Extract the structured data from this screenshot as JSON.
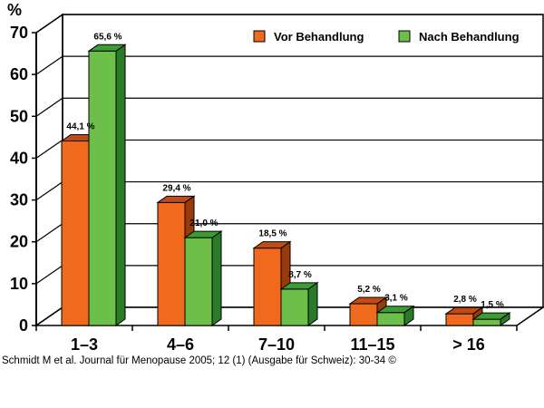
{
  "chart_data": {
    "type": "bar",
    "ylabel": "%",
    "ylim": [
      0,
      70
    ],
    "yticks": [
      0,
      10,
      20,
      30,
      40,
      50,
      60,
      70
    ],
    "categories": [
      "1–3",
      "4–6",
      "7–10",
      "11–15",
      "> 16"
    ],
    "series": [
      {
        "name": "Vor Behandlung",
        "values": [
          44.1,
          29.4,
          18.5,
          5.2,
          2.8
        ],
        "labels": [
          "44,1 %",
          "29,4 %",
          "18,5 %",
          "5,2 %",
          "2,8 %"
        ],
        "color": "#f06a1e",
        "side_color": "#9a3a0c",
        "top_color": "#c04c14"
      },
      {
        "name": "Nach Behandlung",
        "values": [
          65.6,
          21.0,
          8.7,
          3.1,
          1.5
        ],
        "labels": [
          "65,6 %",
          "21,0 %",
          "8,7 %",
          "3,1 %",
          "1,5 %"
        ],
        "color": "#6cc04a",
        "side_color": "#2a7a2a",
        "top_color": "#3f9a36"
      }
    ],
    "grid": true,
    "legend_position": "top-right",
    "style": "3d"
  },
  "citation": "Schmidt M et al. Journal für Menopause 2005; 12 (1) (Ausgabe für Schweiz): 30-34 ©"
}
